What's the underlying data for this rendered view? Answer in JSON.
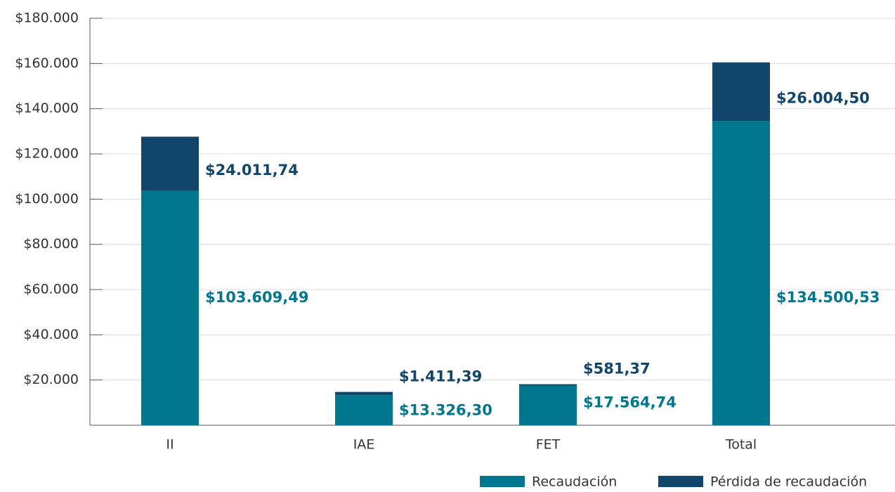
{
  "chart_data": {
    "type": "stacked_bar",
    "categories": [
      "II",
      "IAE",
      "FET",
      "Total"
    ],
    "series": [
      {
        "name": "Recaudación",
        "color": "#00778f",
        "values": [
          103609.49,
          13326.3,
          17564.74,
          134500.53
        ],
        "value_labels": [
          "$103.609,49",
          "$13.326,30",
          "$17.564,74",
          "$134.500,53"
        ]
      },
      {
        "name": "Pérdida de recaudación",
        "color": "#11456b",
        "values": [
          24011.74,
          1411.39,
          581.37,
          26004.5
        ],
        "value_labels": [
          "$24.011,74",
          "$1.411,39",
          "$581,37",
          "$26.004,50"
        ]
      }
    ],
    "ylim": [
      0,
      180000
    ],
    "yticks": [
      {
        "value": 20000,
        "label": "$20.000"
      },
      {
        "value": 40000,
        "label": "$40.000"
      },
      {
        "value": 60000,
        "label": "$60.000"
      },
      {
        "value": 80000,
        "label": "$80.000"
      },
      {
        "value": 100000,
        "label": "$100.000"
      },
      {
        "value": 120000,
        "label": "$120.000"
      },
      {
        "value": 140000,
        "label": "$140.000"
      },
      {
        "value": 160000,
        "label": "$160.000"
      },
      {
        "value": 180000,
        "label": "$180.000"
      }
    ],
    "grid": true
  }
}
